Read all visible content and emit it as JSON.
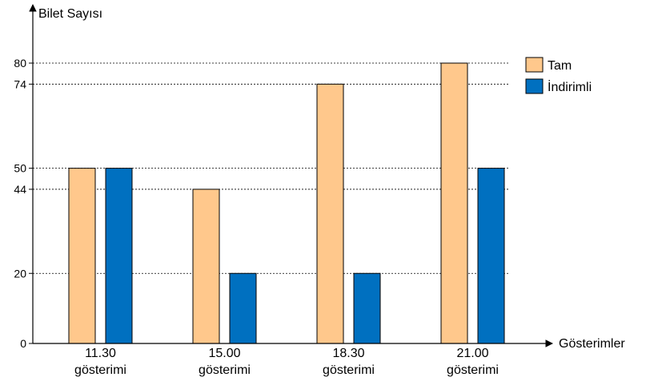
{
  "chart_data": {
    "type": "bar",
    "ylabel": "Bilet Sayısı",
    "xlabel": "Gösterimler",
    "categories": [
      [
        "11.30",
        "gösterimi"
      ],
      [
        "15.00",
        "gösterimi"
      ],
      [
        "18.30",
        "gösterimi"
      ],
      [
        "21.00",
        "gösterimi"
      ]
    ],
    "series": [
      {
        "name": "Tam",
        "color": "#FFC88C",
        "values": [
          50,
          44,
          74,
          80
        ]
      },
      {
        "name": "İndirimli",
        "color": "#0070C0",
        "values": [
          50,
          20,
          20,
          50
        ]
      }
    ],
    "yticks": [
      0,
      20,
      44,
      50,
      74,
      80
    ],
    "ylim": [
      0,
      80
    ],
    "grid": "dotted horizontal lines at tick values",
    "legend": "top-right"
  }
}
